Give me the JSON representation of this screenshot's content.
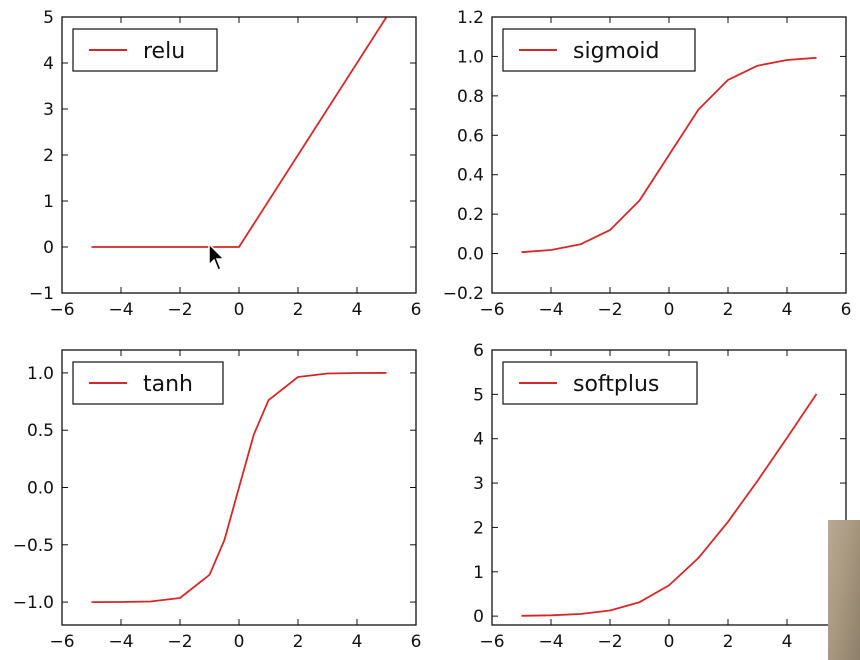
{
  "chart_data": [
    {
      "type": "line",
      "series": [
        {
          "name": "relu",
          "x": [
            -5,
            0,
            5
          ],
          "y": [
            0,
            0,
            5
          ]
        }
      ],
      "xlim": [
        -6,
        6
      ],
      "ylim": [
        -1,
        5
      ],
      "xticks": [
        -6,
        -4,
        -2,
        0,
        2,
        4,
        6
      ],
      "yticks": [
        -1,
        0,
        1,
        2,
        3,
        4,
        5
      ],
      "xtick_labels": [
        "−6",
        "−4",
        "−2",
        "0",
        "2",
        "4",
        "6"
      ],
      "ytick_labels": [
        "−1",
        "0",
        "1",
        "2",
        "3",
        "4",
        "5"
      ],
      "legend": "top-left",
      "grid": false,
      "color": "#d62728"
    },
    {
      "type": "line",
      "series": [
        {
          "name": "sigmoid",
          "x": [
            -5,
            -4,
            -3,
            -2,
            -1,
            0,
            1,
            2,
            3,
            4,
            5
          ],
          "y": [
            0.007,
            0.018,
            0.047,
            0.119,
            0.269,
            0.5,
            0.731,
            0.881,
            0.953,
            0.982,
            0.993
          ]
        }
      ],
      "xlim": [
        -6,
        6
      ],
      "ylim": [
        -0.2,
        1.2
      ],
      "xticks": [
        -6,
        -4,
        -2,
        0,
        2,
        4,
        6
      ],
      "yticks": [
        -0.2,
        0.0,
        0.2,
        0.4,
        0.6,
        0.8,
        1.0,
        1.2
      ],
      "xtick_labels": [
        "−6",
        "−4",
        "−2",
        "0",
        "2",
        "4",
        "6"
      ],
      "ytick_labels": [
        "−0.2",
        "0.0",
        "0.2",
        "0.4",
        "0.6",
        "0.8",
        "1.0",
        "1.2"
      ],
      "legend": "top-left",
      "grid": false,
      "color": "#d62728"
    },
    {
      "type": "line",
      "series": [
        {
          "name": "tanh",
          "x": [
            -5,
            -4,
            -3,
            -2,
            -1,
            -0.5,
            0,
            0.5,
            1,
            2,
            3,
            4,
            5
          ],
          "y": [
            -1.0,
            -0.999,
            -0.995,
            -0.964,
            -0.762,
            -0.462,
            0.0,
            0.462,
            0.762,
            0.964,
            0.995,
            0.999,
            1.0
          ]
        }
      ],
      "xlim": [
        -6,
        6
      ],
      "ylim": [
        -1.2,
        1.2
      ],
      "xticks": [
        -6,
        -4,
        -2,
        0,
        2,
        4,
        6
      ],
      "yticks": [
        -1.0,
        -0.5,
        0.0,
        0.5,
        1.0
      ],
      "xtick_labels": [
        "−6",
        "−4",
        "−2",
        "0",
        "2",
        "4",
        "6"
      ],
      "ytick_labels": [
        "−1.0",
        "−0.5",
        "0.0",
        "0.5",
        "1.0"
      ],
      "legend": "top-left",
      "grid": false,
      "color": "#d62728"
    },
    {
      "type": "line",
      "series": [
        {
          "name": "softplus",
          "x": [
            -5,
            -4,
            -3,
            -2,
            -1,
            0,
            1,
            2,
            3,
            4,
            5
          ],
          "y": [
            0.007,
            0.018,
            0.049,
            0.127,
            0.313,
            0.693,
            1.313,
            2.127,
            3.049,
            4.018,
            5.007
          ]
        }
      ],
      "xlim": [
        -6,
        6
      ],
      "ylim": [
        -0.2,
        6
      ],
      "xticks": [
        -6,
        -4,
        -2,
        0,
        2,
        4,
        6
      ],
      "yticks": [
        0,
        1,
        2,
        3,
        4,
        5,
        6
      ],
      "xtick_labels": [
        "−6",
        "−4",
        "−2",
        "0",
        "2",
        "4",
        "6"
      ],
      "ytick_labels": [
        "0",
        "1",
        "2",
        "3",
        "4",
        "5",
        "6"
      ],
      "legend": "top-left",
      "grid": false,
      "color": "#d62728"
    }
  ]
}
